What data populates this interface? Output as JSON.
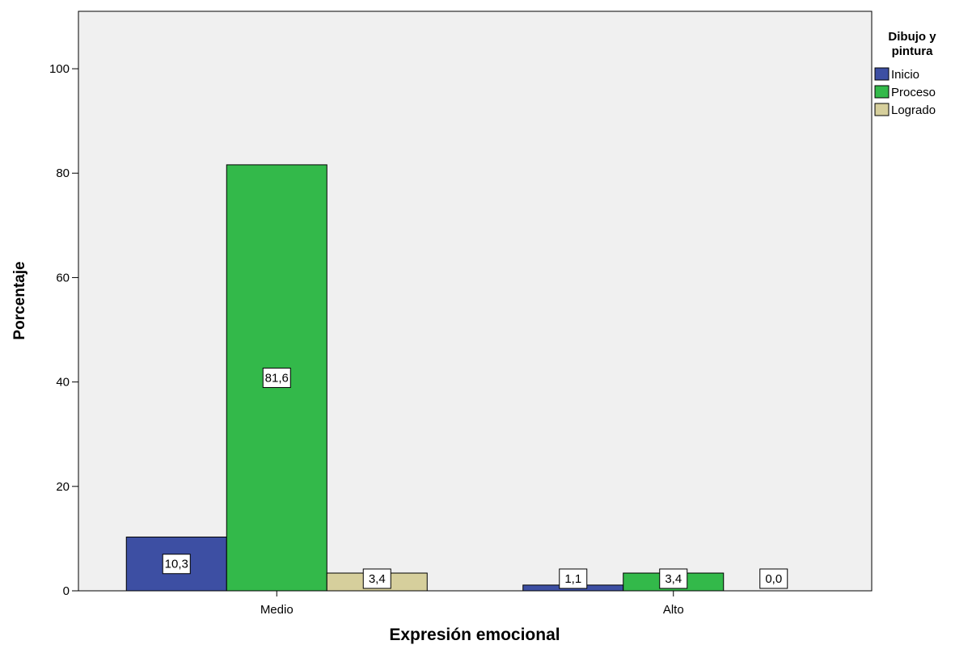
{
  "chart_data": {
    "type": "bar",
    "xlabel": "Expresión emocional",
    "ylabel": "Porcentaje",
    "categories": [
      "Medio",
      "Alto"
    ],
    "series": [
      {
        "name": "Inicio",
        "color": "#3d4fa3",
        "values": [
          10.3,
          1.1
        ],
        "labels": [
          "10,3",
          "1,1"
        ]
      },
      {
        "name": "Proceso",
        "color": "#33b94a",
        "values": [
          81.6,
          3.4
        ],
        "labels": [
          "81,6",
          "3,4"
        ]
      },
      {
        "name": "Logrado",
        "color": "#d6cf9c",
        "values": [
          3.4,
          0.0
        ],
        "labels": [
          "3,4",
          "0,0"
        ]
      }
    ],
    "ylim": [
      0,
      111
    ],
    "yticks": [
      0,
      20,
      40,
      60,
      80,
      100
    ],
    "legend": {
      "title_lines": [
        "Dibujo y",
        "pintura"
      ],
      "placement": "right"
    },
    "grid": false
  }
}
